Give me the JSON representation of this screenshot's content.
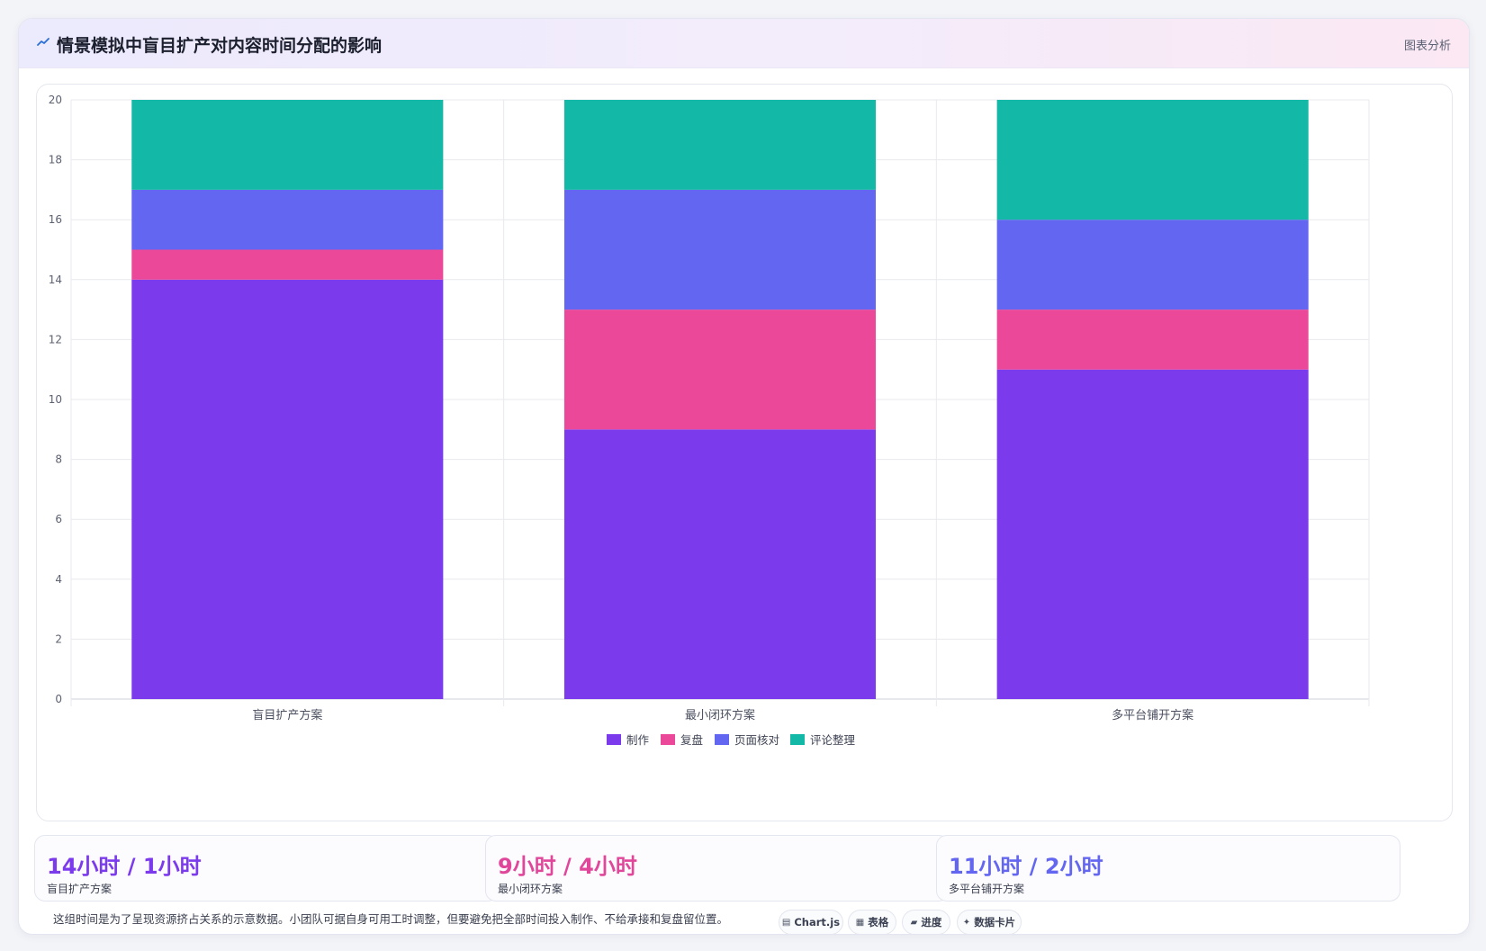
{
  "header": {
    "title": "情景模拟中盲目扩产对内容时间分配的影响",
    "tag": "图表分析"
  },
  "chart_data": {
    "type": "bar",
    "stacked": true,
    "categories": [
      "盲目扩产方案",
      "最小闭环方案",
      "多平台铺开方案"
    ],
    "series": [
      {
        "name": "制作",
        "values": [
          14,
          9,
          11
        ],
        "color": "#7c3aed"
      },
      {
        "name": "复盘",
        "values": [
          1,
          4,
          2
        ],
        "color": "#ec4899"
      },
      {
        "name": "页面核对",
        "values": [
          2,
          4,
          3
        ],
        "color": "#6366f1"
      },
      {
        "name": "评论整理",
        "values": [
          3,
          3,
          4
        ],
        "color": "#14b8a6"
      }
    ],
    "ylim": [
      0,
      20
    ],
    "yticks": [
      "0",
      "2",
      "4",
      "6",
      "8",
      "10",
      "12",
      "14",
      "16",
      "18",
      "20"
    ],
    "grid": true,
    "legend": "bottom"
  },
  "stats": [
    {
      "value": "14小时 / 1小时",
      "label": "盲目扩产方案",
      "color": "#7c3aed"
    },
    {
      "value": "9小时 / 4小时",
      "label": "最小闭环方案",
      "color": "#e0479b"
    },
    {
      "value": "11小时 / 2小时",
      "label": "多平台铺开方案",
      "color": "#6366f1"
    }
  ],
  "footnote": "这组时间是为了呈现资源挤占关系的示意数据。小团队可据自身可用工时调整，但要避免把全部时间投入制作、不给承接和复盘留位置。",
  "chips": [
    {
      "icon": "▤",
      "label": "Chart.js",
      "icon_name": "chart-icon"
    },
    {
      "icon": "▦",
      "label": "表格",
      "icon_name": "table-icon"
    },
    {
      "icon": "▰",
      "label": "进度",
      "icon_name": "progress-icon"
    },
    {
      "icon": "✦",
      "label": "数据卡片",
      "icon_name": "card-icon"
    }
  ]
}
